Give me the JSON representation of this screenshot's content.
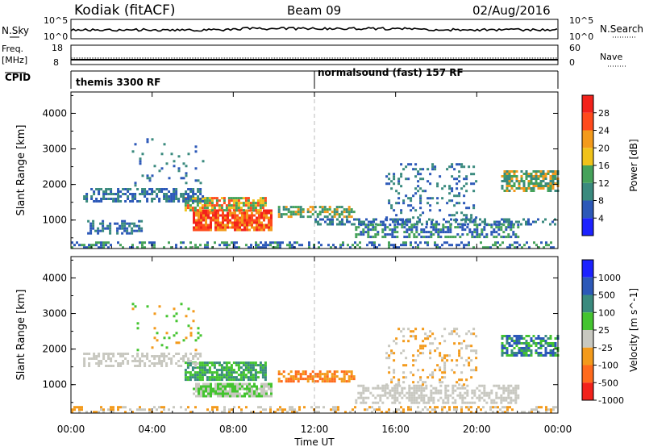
{
  "header": {
    "station": "Kodiak (fitACF)",
    "beam": "Beam 09",
    "date": "02/Aug/2016"
  },
  "top_panels": {
    "nsky": {
      "label": "N.Sky",
      "ticks": [
        "10^5",
        "10^0"
      ]
    },
    "nsearch": {
      "label": "N.Search",
      "ticks": [
        "10^5",
        "10^0"
      ]
    },
    "freq": {
      "label_1": "Freq.",
      "label_2": "[MHz]",
      "ticks": [
        "18",
        "8"
      ]
    },
    "nave": {
      "label": "Nave",
      "ticks": [
        "60",
        "0"
      ]
    },
    "cpid": {
      "label": "CPID",
      "modes": [
        "themis 3300 RF",
        "normalsound (fast) 157 RF"
      ]
    }
  },
  "chart_data": [
    {
      "type": "heatmap",
      "name": "power",
      "ylabel": "Slant Range [km]",
      "xlabel": "Time UT",
      "xlim": [
        0,
        24
      ],
      "ylim": [
        200,
        4600
      ],
      "x_ticks": [
        "00:00",
        "04:00",
        "08:00",
        "12:00",
        "16:00",
        "20:00",
        "00:00"
      ],
      "y_ticks": [
        "1000",
        "2000",
        "3000",
        "4000"
      ],
      "colorbar": {
        "label": "Power [dB]",
        "ticks": [
          "4",
          "8",
          "12",
          "16",
          "20",
          "24",
          "28"
        ],
        "colors": [
          "#1c22ff",
          "#2c58b8",
          "#3a8a7e",
          "#45a25a",
          "#f0c21a",
          "#f39a1b",
          "#ff4a1c",
          "#f2221b"
        ]
      },
      "mode_change_hour": 12,
      "regions": [
        {
          "t0": 6.0,
          "t1": 9.9,
          "r0": 700,
          "r1": 1300,
          "levels": [
            22,
            26,
            28
          ],
          "density": 0.85
        },
        {
          "t0": 5.6,
          "t1": 9.6,
          "r0": 1300,
          "r1": 1650,
          "levels": [
            12,
            18,
            24
          ],
          "density": 0.8
        },
        {
          "t0": 0.6,
          "t1": 6.5,
          "r0": 1500,
          "r1": 1900,
          "levels": [
            6,
            10
          ],
          "density": 0.55
        },
        {
          "t0": 0.8,
          "t1": 3.5,
          "r0": 650,
          "r1": 1000,
          "levels": [
            4,
            8
          ],
          "density": 0.5
        },
        {
          "t0": 10.2,
          "t1": 14.0,
          "r0": 1100,
          "r1": 1400,
          "levels": [
            10,
            14,
            20
          ],
          "density": 0.65
        },
        {
          "t0": 12.0,
          "t1": 24.0,
          "r0": 900,
          "r1": 1050,
          "levels": [
            6,
            9
          ],
          "density": 0.5
        },
        {
          "t0": 14.0,
          "t1": 22.0,
          "r0": 500,
          "r1": 900,
          "levels": [
            6,
            12
          ],
          "density": 0.55
        },
        {
          "t0": 21.2,
          "t1": 24.0,
          "r0": 1800,
          "r1": 2400,
          "levels": [
            8,
            12,
            20
          ],
          "density": 0.7
        },
        {
          "t0": 15.5,
          "t1": 20.0,
          "r0": 1000,
          "r1": 2600,
          "levels": [
            6,
            10
          ],
          "density": 0.18
        },
        {
          "t0": 0.0,
          "t1": 24.0,
          "r0": 200,
          "r1": 400,
          "levels": [
            6,
            12
          ],
          "density": 0.35
        },
        {
          "t0": 3.0,
          "t1": 6.5,
          "r0": 2000,
          "r1": 3300,
          "levels": [
            6,
            10
          ],
          "density": 0.1
        }
      ]
    },
    {
      "type": "heatmap",
      "name": "velocity",
      "ylabel": "Slant Range [km]",
      "xlabel": "Time UT",
      "xlim": [
        0,
        24
      ],
      "ylim": [
        200,
        4600
      ],
      "x_ticks": [
        "00:00",
        "04:00",
        "08:00",
        "12:00",
        "16:00",
        "20:00",
        "00:00"
      ],
      "y_ticks": [
        "1000",
        "2000",
        "3000",
        "4000"
      ],
      "colorbar": {
        "label": "Velocity [m s^-1]",
        "ticks": [
          "1000",
          "500",
          "100",
          "25",
          "-25",
          "-100",
          "-500",
          "-1000"
        ],
        "colors": [
          "#1c22ff",
          "#2c58b8",
          "#3a8a7e",
          "#44c430",
          "#c8c8c0",
          "#f39a1b",
          "#ff6a1c",
          "#f2221b"
        ]
      },
      "mode_change_hour": 12,
      "regions": [
        {
          "t0": 6.0,
          "t1": 9.9,
          "r0": 700,
          "r1": 1050,
          "levels": [
            4,
            3
          ],
          "density": 0.85
        },
        {
          "t0": 5.6,
          "t1": 9.6,
          "r0": 1150,
          "r1": 1650,
          "levels": [
            2,
            3
          ],
          "density": 0.8
        },
        {
          "t0": 0.6,
          "t1": 6.5,
          "r0": 1500,
          "r1": 1900,
          "levels": [
            4
          ],
          "density": 0.5
        },
        {
          "t0": 10.2,
          "t1": 14.0,
          "r0": 1100,
          "r1": 1400,
          "levels": [
            5,
            6
          ],
          "density": 0.6
        },
        {
          "t0": 14.0,
          "t1": 22.0,
          "r0": 500,
          "r1": 1000,
          "levels": [
            4
          ],
          "density": 0.55
        },
        {
          "t0": 21.2,
          "t1": 24.0,
          "r0": 1800,
          "r1": 2400,
          "levels": [
            2,
            1,
            3
          ],
          "density": 0.7
        },
        {
          "t0": 15.5,
          "t1": 20.0,
          "r0": 1000,
          "r1": 2600,
          "levels": [
            4,
            5
          ],
          "density": 0.18
        },
        {
          "t0": 0.0,
          "t1": 24.0,
          "r0": 200,
          "r1": 400,
          "levels": [
            5,
            4
          ],
          "density": 0.35
        },
        {
          "t0": 3.0,
          "t1": 6.5,
          "r0": 2000,
          "r1": 3300,
          "levels": [
            5,
            3
          ],
          "density": 0.1
        }
      ]
    }
  ]
}
